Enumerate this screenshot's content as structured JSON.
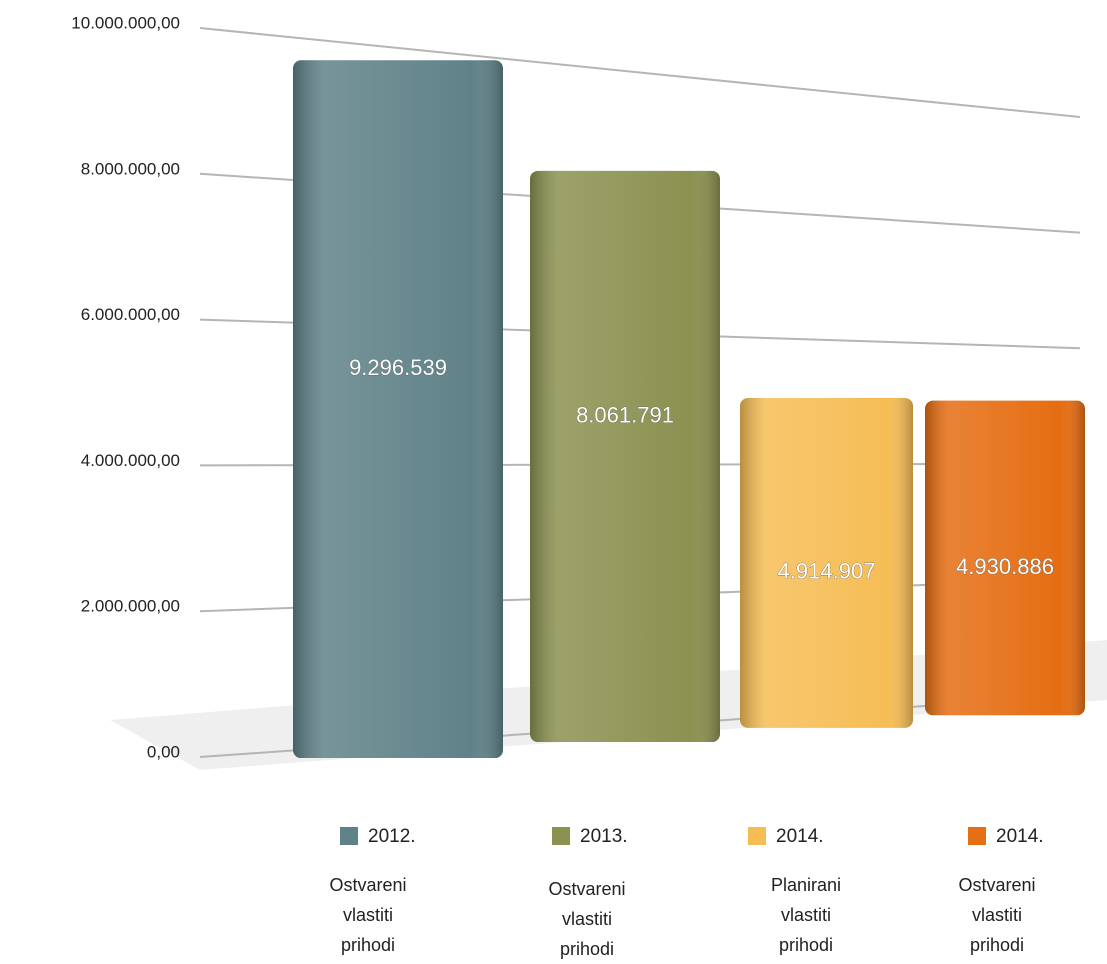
{
  "chart_data": {
    "type": "bar",
    "categories": [
      "2012.",
      "2013.",
      "2014.",
      "2014."
    ],
    "category_descriptions": [
      "Ostvareni vlastiti prihodi",
      "Ostvareni vlastiti prihodi",
      "Planirani vlastiti prihodi",
      "Ostvareni vlastiti prihodi"
    ],
    "values": [
      9296539,
      8061791,
      4914907,
      4930886
    ],
    "value_labels": [
      "9.296.539",
      "8.061.791",
      "4.914.907",
      "4.930.886"
    ],
    "colors": [
      "#5f8288",
      "#8b9150",
      "#f6bd55",
      "#e56d12"
    ],
    "ylim": [
      0,
      10000000
    ],
    "yticks": [
      {
        "value": 0,
        "label": "0,00"
      },
      {
        "value": 2000000,
        "label": "2.000.000,00"
      },
      {
        "value": 4000000,
        "label": "4.000.000,00"
      },
      {
        "value": 6000000,
        "label": "6.000.000,00"
      },
      {
        "value": 8000000,
        "label": "8.000.000,00"
      },
      {
        "value": 10000000,
        "label": "10.000.000,00"
      }
    ],
    "grid": true
  }
}
